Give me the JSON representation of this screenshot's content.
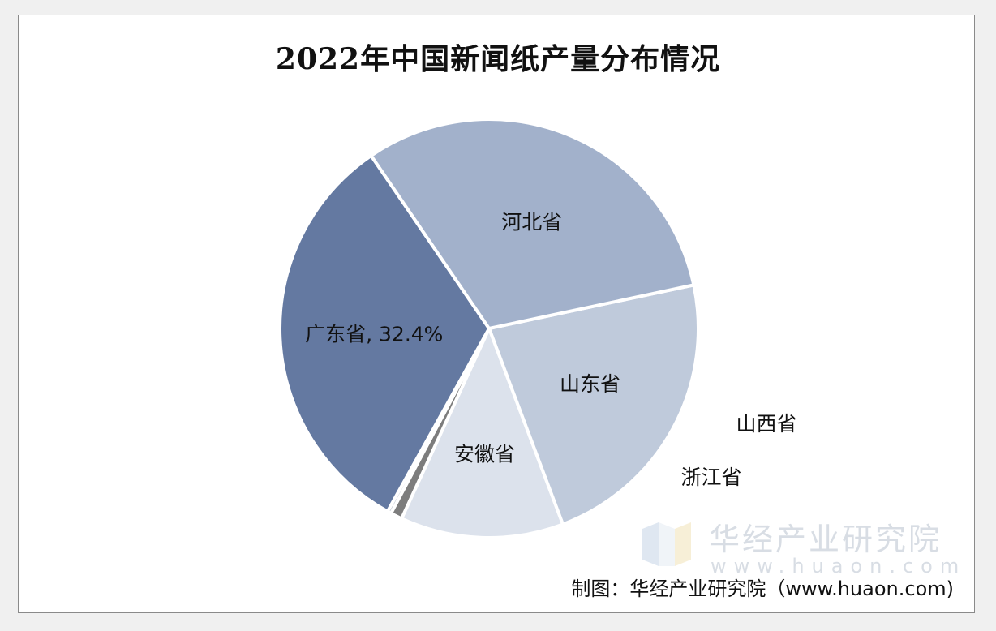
{
  "chart_data": {
    "type": "pie",
    "title": "2022年中国新闻纸产量分布情况",
    "slices": [
      {
        "label": "山东省",
        "value": 22.6,
        "color": "#bfcadb",
        "data_label": "山东省"
      },
      {
        "label": "安徽省",
        "value": 12.6,
        "color": "#dce2ec",
        "data_label": "安徽省"
      },
      {
        "label": "山西省",
        "value": 0.9,
        "color": "#7d7d7d",
        "data_label": "山西省"
      },
      {
        "label": "浙江省",
        "value": 0.3,
        "color": "#c8ced6",
        "data_label": "浙江省"
      },
      {
        "label": "广东省",
        "value": 32.4,
        "color": "#6479a1",
        "data_label": "广东省, 32.4%"
      },
      {
        "label": "河北省",
        "value": 31.2,
        "color": "#a2b1cb",
        "data_label": "河北省"
      }
    ],
    "start_angle_deg": -12
  },
  "watermark": {
    "name": "华经产业研究院",
    "url": "www.huaon.com"
  },
  "source": "制图：华经产业研究院（www.huaon.com)"
}
